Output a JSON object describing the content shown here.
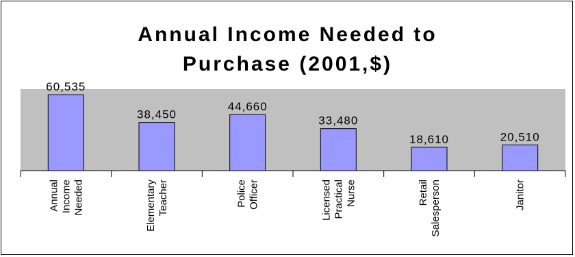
{
  "chart_data": {
    "type": "bar",
    "title_lines": [
      "Annual Income Needed to",
      "Purchase (2001,$)"
    ],
    "categories": [
      [
        "Annual",
        "Income",
        "Needed"
      ],
      [
        "Elementary",
        "Teacher"
      ],
      [
        "Police",
        "Officer"
      ],
      [
        "Licensed",
        "Practical",
        "Nurse"
      ],
      [
        "Retail",
        "Salesperson"
      ],
      [
        "Janitor"
      ]
    ],
    "values": [
      60535,
      38450,
      44660,
      33480,
      18610,
      20510
    ],
    "data_labels": [
      "60,535",
      "38,450",
      "44,660",
      "33,480",
      "18,610",
      "20,510"
    ],
    "ylim": [
      0,
      65000
    ],
    "grid": false,
    "legend": "none",
    "colors": {
      "plot_background": "#c0c0c0",
      "bar_fill": "#9999ff",
      "bar_stroke": "#000000",
      "chart_border": "#000000"
    }
  }
}
